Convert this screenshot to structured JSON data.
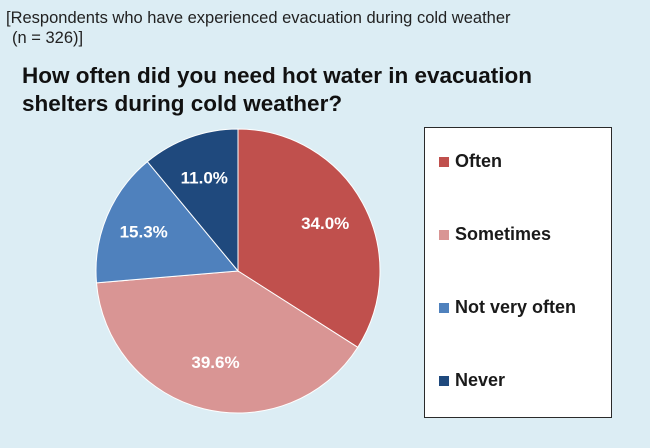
{
  "subtitle_line1": "[Respondents who have experienced evacuation during cold weather",
  "subtitle_line2": "(n = 326)]",
  "title_line1": "How often did you need hot water in evacuation",
  "title_line2": "shelters during cold weather?",
  "chart_data": {
    "type": "pie",
    "title": "How often did you need hot water in evacuation shelters during cold weather?",
    "categories": [
      "Often",
      "Sometimes",
      "Not very often",
      "Never"
    ],
    "values": [
      34.0,
      39.6,
      15.3,
      11.0
    ],
    "value_labels": [
      "34.0%",
      "39.6%",
      "15.3%",
      "11.0%"
    ],
    "colors": [
      "#c0504d",
      "#d99594",
      "#4f81bd",
      "#1f497d"
    ],
    "legend_placement": "right"
  }
}
